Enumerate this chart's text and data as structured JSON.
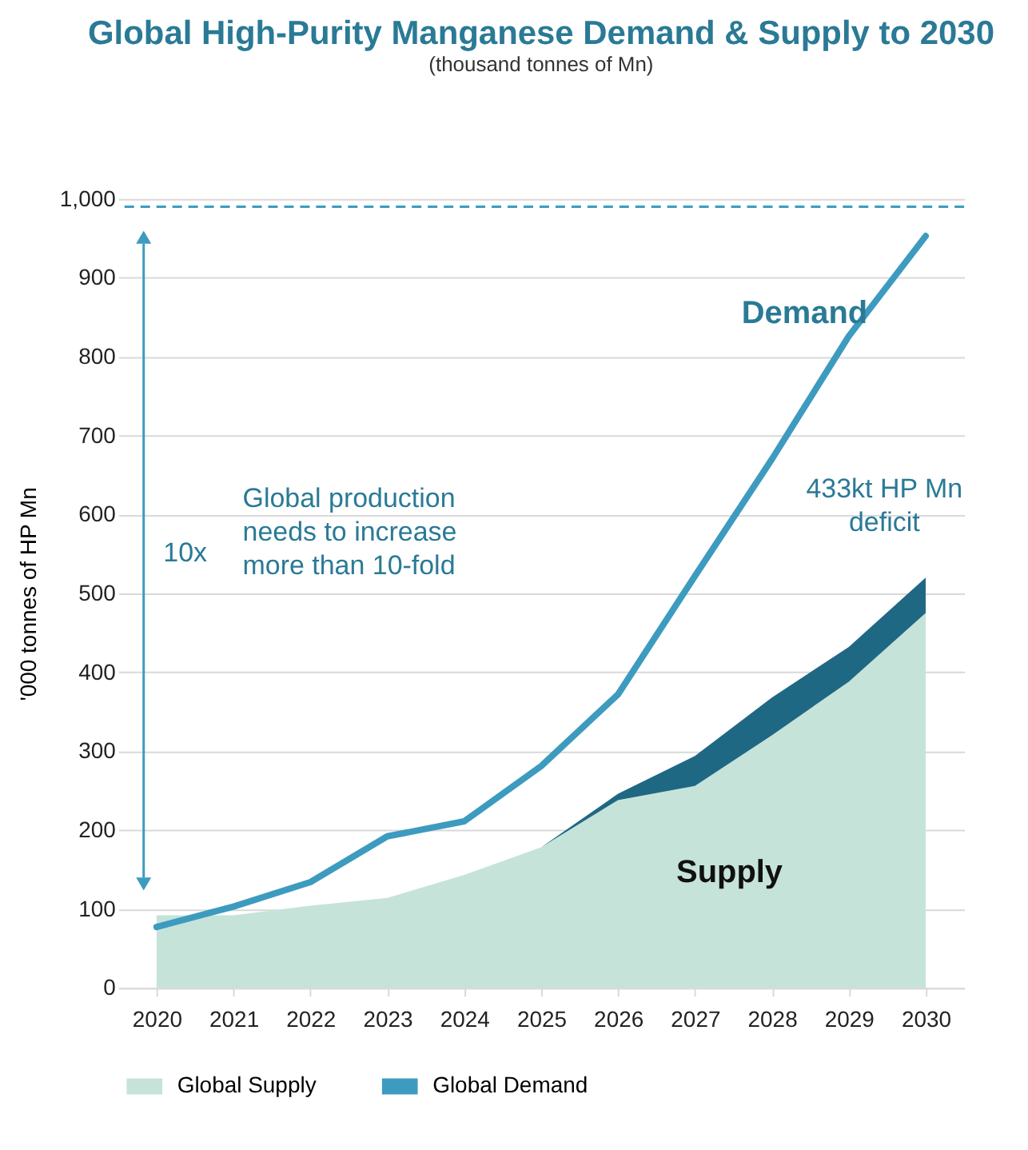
{
  "chart_data": {
    "type": "area",
    "stacked": true,
    "title": "Global High-Purity Manganese Demand & Supply to 2030",
    "subtitle": "(thousand tonnes of Mn)",
    "ylabel": "'000 tonnes of HP Mn",
    "categories": [
      "2020",
      "2021",
      "2022",
      "2023",
      "2024",
      "2025",
      "2026",
      "2027",
      "2028",
      "2029",
      "2030"
    ],
    "series": [
      {
        "name": "Global Supply",
        "type": "area",
        "color": "#c6e3d9",
        "values": [
          92,
          92,
          104,
          114,
          143,
          178,
          238,
          256,
          320,
          388,
          475
        ]
      },
      {
        "type": "area",
        "color": "#1f6884",
        "values": [
          0,
          0,
          0,
          0,
          0,
          0,
          8,
          38,
          48,
          44,
          45
        ]
      },
      {
        "name": "Global Demand",
        "type": "line",
        "color": "#3d9bbf",
        "values": [
          77,
          103,
          134,
          192,
          211,
          281,
          372,
          522,
          670,
          826,
          953
        ]
      }
    ],
    "ylim": [
      0,
      1000
    ],
    "yticks": [
      0,
      100,
      200,
      300,
      400,
      500,
      600,
      700,
      800,
      900,
      {
        "value": 1000,
        "label": "1,000"
      }
    ],
    "grid": "y",
    "legend": "bottom",
    "ref_lines": [
      {
        "axis": "y",
        "value": 990,
        "color": "#3d9bbf",
        "line_style": "dashed"
      }
    ],
    "annotations": [
      "Demand",
      "Supply",
      "10x",
      "Global production\nneeds to increase\nmore than 10-fold",
      "433kt HP Mn\ndeficit"
    ]
  }
}
